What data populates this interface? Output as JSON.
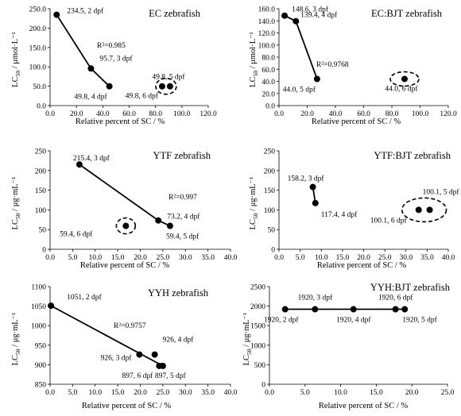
{
  "figure": {
    "panels": [
      {
        "id": "a",
        "title": "EC zebrafish",
        "xlabel": "Relative percent of SC / %",
        "ylabel": "LC50 / μmol·L⁻¹",
        "r2": "R²=0.985"
      },
      {
        "id": "b",
        "title": "EC:BJT zebrafish",
        "xlabel": "Relative percent of SC / %",
        "ylabel": "LC50 / μmol·L⁻¹",
        "r2": "R²=0.9768"
      },
      {
        "id": "c",
        "title": "YTF zebrafish",
        "xlabel": "Relative percent of SC / %",
        "ylabel": "LC50 / μg·mL⁻¹",
        "r2": "R²=0.997"
      },
      {
        "id": "d",
        "title": "YTF:BJT zebrafish",
        "xlabel": "Relative percent of SC / %",
        "ylabel": "LC50 / μg·mL⁻¹",
        "r2": ""
      },
      {
        "id": "e",
        "title": "YYH zebrafish",
        "xlabel": "Relative percent of SC / %",
        "ylabel": "LC50 / μg·mL⁻¹",
        "r2": "R²=0.9757"
      },
      {
        "id": "f",
        "title": "YYH:BJT zebrafish",
        "xlabel": "Relative percent of SC / %",
        "ylabel": "LC50 / μg·mL⁻¹",
        "r2": ""
      }
    ]
  },
  "chart_data": [
    {
      "type": "scatter",
      "title": "EC zebrafish",
      "xlabel": "Relative percent of SC / %",
      "ylabel": "LC50 / μmol·L⁻¹",
      "xlim": [
        0,
        120
      ],
      "xticks": [
        0,
        20,
        40,
        60,
        80,
        100,
        120
      ],
      "xtick_decimals": 1,
      "ylim": [
        0,
        250
      ],
      "yticks": [
        0,
        50,
        100,
        150,
        200,
        250
      ],
      "ytick_decimals": 1,
      "points": [
        {
          "x": 5,
          "y": 234.5,
          "label": "234.5, 2 dpf"
        },
        {
          "x": 31,
          "y": 95.7,
          "label": "95.7, 3 dpf"
        },
        {
          "x": 45,
          "y": 49.8,
          "label": "49.8, 4 dpf"
        },
        {
          "x": 85,
          "y": 49.8,
          "label": "49.8, 6 dpf"
        },
        {
          "x": 91,
          "y": 49.8,
          "label": "49.8, 5 dpf"
        }
      ],
      "trendline": {
        "points": [
          [
            5,
            234.5
          ],
          [
            31,
            95.7
          ],
          [
            45,
            49.8
          ]
        ],
        "r2": "R²=0.985"
      },
      "outlier_group": [
        85,
        91
      ]
    },
    {
      "type": "scatter",
      "title": "EC:BJT zebrafish",
      "xlabel": "Relative percent of SC / %",
      "ylabel": "LC50 / μmol·L⁻¹",
      "xlim": [
        0,
        120
      ],
      "xticks": [
        0,
        20,
        40,
        60,
        80,
        100,
        120
      ],
      "xtick_decimals": 1,
      "ylim": [
        0,
        160
      ],
      "yticks": [
        0,
        20,
        40,
        60,
        80,
        100,
        120,
        140,
        160
      ],
      "ytick_decimals": 1,
      "points": [
        {
          "x": 4,
          "y": 148.6,
          "label": "148.6, 3 dpf"
        },
        {
          "x": 12,
          "y": 139.4,
          "label": "139.4, 4 dpf"
        },
        {
          "x": 27,
          "y": 44.0,
          "label": "44.0, 5 dpf"
        },
        {
          "x": 89,
          "y": 44.0,
          "label": "44.0, 6 dpf"
        }
      ],
      "trendline": {
        "points": [
          [
            4,
            148.6
          ],
          [
            12,
            139.4
          ],
          [
            27,
            44.0
          ]
        ],
        "r2": "R²=0.9768"
      },
      "outlier_group": [
        89
      ]
    },
    {
      "type": "scatter",
      "title": "YTF zebrafish",
      "xlabel": "Relative percent of SC / %",
      "ylabel": "LC50 / μg·mL⁻¹",
      "xlim": [
        0,
        40
      ],
      "xticks": [
        0,
        5,
        10,
        15,
        20,
        25,
        30,
        35,
        40
      ],
      "xtick_decimals": 1,
      "ylim": [
        0,
        250
      ],
      "yticks": [
        0,
        50,
        100,
        150,
        200,
        250
      ],
      "ytick_decimals": 0,
      "points": [
        {
          "x": 6.5,
          "y": 215.4,
          "label": "215.4, 3 dpf"
        },
        {
          "x": 24,
          "y": 73.2,
          "label": "73.2, 4 dpf"
        },
        {
          "x": 26.6,
          "y": 59.4,
          "label": "59.4, 5 dpf"
        },
        {
          "x": 16.8,
          "y": 59.4,
          "label": "59.4, 6 dpf"
        }
      ],
      "trendline": {
        "points": [
          [
            6.5,
            215.4
          ],
          [
            24,
            73.2
          ],
          [
            26.6,
            59.4
          ]
        ],
        "r2": "R²=0.997"
      },
      "outlier_group": [
        16.8
      ]
    },
    {
      "type": "scatter",
      "title": "YTF:BJT zebrafish",
      "xlabel": "Relative percent of SC / %",
      "ylabel": "LC50 / μg·mL⁻¹",
      "xlim": [
        0,
        40
      ],
      "xticks": [
        0,
        5,
        10,
        15,
        20,
        25,
        30,
        35,
        40
      ],
      "xtick_decimals": 1,
      "ylim": [
        0,
        250
      ],
      "yticks": [
        0,
        50,
        100,
        150,
        200,
        250
      ],
      "ytick_decimals": 0,
      "points": [
        {
          "x": 8,
          "y": 158.2,
          "label": "158.2, 3 dpf"
        },
        {
          "x": 8.6,
          "y": 117.4,
          "label": "117.4, 4 dpf"
        },
        {
          "x": 35.6,
          "y": 100.1,
          "label": "100.1, 5 dpf"
        },
        {
          "x": 33,
          "y": 100.1,
          "label": "100.1, 6 dpf"
        }
      ],
      "trendline": {
        "points": [
          [
            8,
            158.2
          ],
          [
            8.6,
            117.4
          ]
        ],
        "r2": ""
      },
      "outlier_group": [
        33,
        35.6
      ]
    },
    {
      "type": "scatter",
      "title": "YYH zebrafish",
      "xlabel": "Relative percent of SC / %",
      "ylabel": "LC50 / μg·mL⁻¹",
      "xlim": [
        0,
        40
      ],
      "xticks": [
        0,
        5,
        10,
        15,
        20,
        25,
        30,
        35,
        40
      ],
      "xtick_decimals": 1,
      "ylim": [
        850,
        1100
      ],
      "yticks": [
        850,
        900,
        950,
        1000,
        1050,
        1100
      ],
      "ytick_decimals": 0,
      "points": [
        {
          "x": 0.2,
          "y": 1051,
          "label": "1051, 2 dpf"
        },
        {
          "x": 19.8,
          "y": 926,
          "label": "926, 3 dpf"
        },
        {
          "x": 23.2,
          "y": 926,
          "label": "926, 4 dpf"
        },
        {
          "x": 25,
          "y": 897,
          "label": "897, 5 dpf"
        },
        {
          "x": 24.2,
          "y": 897,
          "label": "897, 6 dpf"
        }
      ],
      "trendline": {
        "points": [
          [
            0.2,
            1051
          ],
          [
            25,
            897
          ]
        ],
        "r2": "R²=0.9757"
      },
      "outlier_group": []
    },
    {
      "type": "scatter",
      "title": "YYH:BJT zebrafish",
      "xlabel": "Relative percent of SC / %",
      "ylabel": "LC50 / μg·mL⁻¹",
      "xlim": [
        0,
        25
      ],
      "xticks": [
        0,
        5,
        10,
        15,
        20,
        25
      ],
      "xtick_decimals": 1,
      "ylim": [
        0,
        2500
      ],
      "yticks": [
        0,
        500,
        1000,
        1500,
        2000,
        2500
      ],
      "ytick_decimals": 0,
      "points": [
        {
          "x": 2.2,
          "y": 1920,
          "label": "1920, 2 dpf"
        },
        {
          "x": 6.4,
          "y": 1920,
          "label": "1920, 3 dpf"
        },
        {
          "x": 11.8,
          "y": 1920,
          "label": "1920, 4 dpf"
        },
        {
          "x": 19,
          "y": 1920,
          "label": "1920, 5 dpf"
        },
        {
          "x": 17.7,
          "y": 1920,
          "label": "1920, 6 dpf"
        }
      ],
      "trendline": {
        "points": [
          [
            2.2,
            1920
          ],
          [
            19,
            1920
          ]
        ],
        "r2": ""
      },
      "outlier_group": []
    }
  ]
}
